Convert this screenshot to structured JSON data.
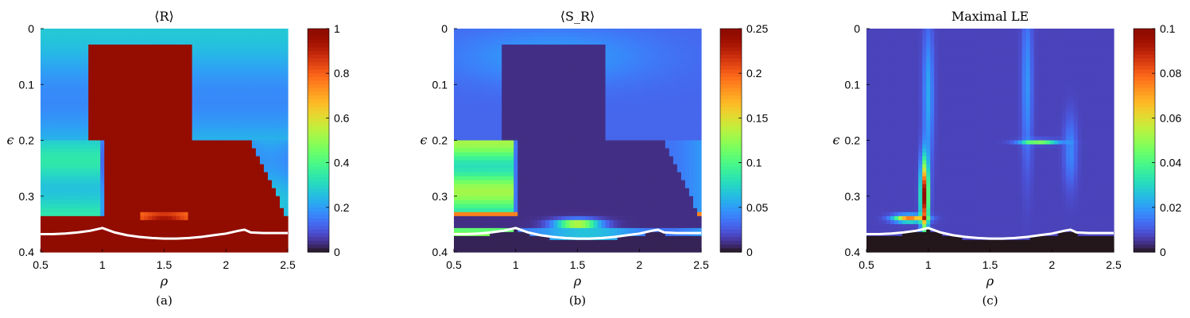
{
  "chart_data": [
    {
      "type": "heatmap",
      "title": "⟨R⟩",
      "xlabel": "ρ",
      "ylabel": "ϵ",
      "caption": "(a)",
      "xlim": [
        0.5,
        2.5
      ],
      "ylim": [
        0,
        0.4
      ],
      "xticks": [
        "0.5",
        "1",
        "1.5",
        "2",
        "2.5"
      ],
      "yticks": [
        "0",
        "0.1",
        "0.2",
        "0.3",
        "0.4"
      ],
      "colorbar": {
        "range": [
          0,
          1
        ],
        "ticks": [
          "0",
          "0.2",
          "0.4",
          "0.6",
          "0.8",
          "1"
        ]
      },
      "pattern": "R",
      "boundary_color": "#ffffff"
    },
    {
      "type": "heatmap",
      "title": "⟨S_R⟩",
      "xlabel": "ρ",
      "ylabel": "ϵ",
      "caption": "(b)",
      "xlim": [
        0.5,
        2.5
      ],
      "ylim": [
        0,
        0.4
      ],
      "xticks": [
        "0.5",
        "1",
        "1.5",
        "2",
        "2.5"
      ],
      "yticks": [
        "0",
        "0.1",
        "0.2",
        "0.3",
        "0.4"
      ],
      "colorbar": {
        "range": [
          0,
          0.25
        ],
        "ticks": [
          "0",
          "0.05",
          "0.1",
          "0.15",
          "0.2",
          "0.25"
        ]
      },
      "pattern": "S",
      "boundary_color": "#ffffff"
    },
    {
      "type": "heatmap",
      "title": "Maximal LE",
      "xlabel": "ρ",
      "ylabel": "ϵ",
      "caption": "(c)",
      "xlim": [
        0.5,
        2.5
      ],
      "ylim": [
        0,
        0.4
      ],
      "xticks": [
        "0.5",
        "1",
        "1.5",
        "2",
        "2.5"
      ],
      "yticks": [
        "0",
        "0.1",
        "0.2",
        "0.3",
        "0.4"
      ],
      "colorbar": {
        "range": [
          0,
          0.1
        ],
        "ticks": [
          "0",
          "0.02",
          "0.04",
          "0.06",
          "0.08",
          "0.1"
        ]
      },
      "pattern": "LE",
      "boundary_color": "#ffffff"
    }
  ],
  "boundary_curve": {
    "x": [
      0.5,
      0.6,
      0.7,
      0.8,
      0.9,
      1.0,
      1.1,
      1.2,
      1.3,
      1.4,
      1.5,
      1.6,
      1.7,
      1.8,
      1.9,
      2.0,
      2.1,
      2.15,
      2.2,
      2.3,
      2.4,
      2.5
    ],
    "y": [
      0.368,
      0.368,
      0.367,
      0.365,
      0.362,
      0.357,
      0.365,
      0.37,
      0.373,
      0.375,
      0.376,
      0.376,
      0.375,
      0.373,
      0.37,
      0.367,
      0.362,
      0.36,
      0.365,
      0.366,
      0.366,
      0.366
    ]
  }
}
